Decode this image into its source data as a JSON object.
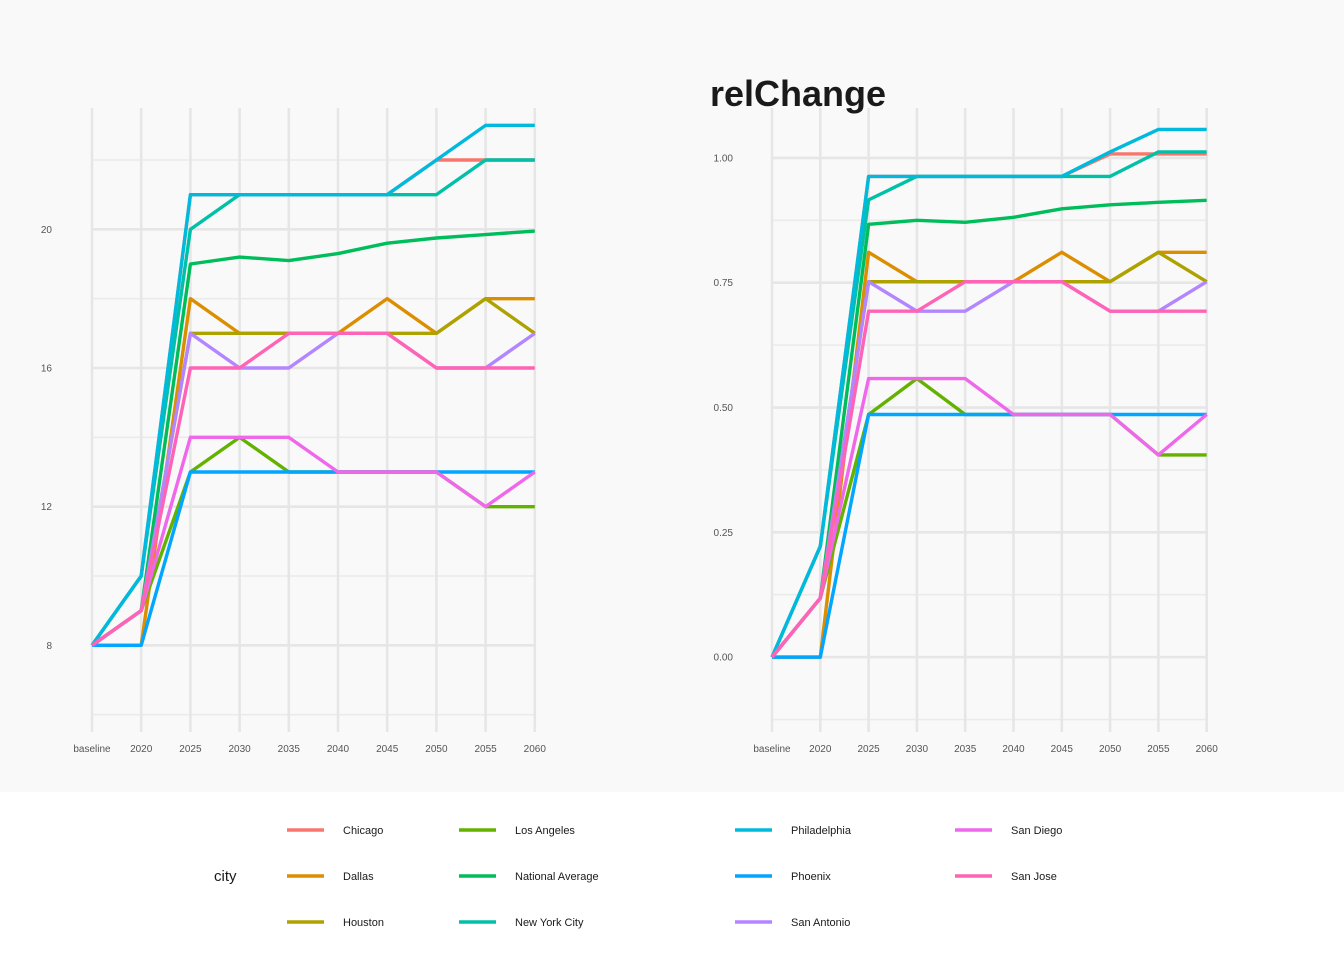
{
  "chart_data": [
    {
      "type": "line",
      "title": "",
      "xlabel": "",
      "ylabel": "",
      "categories": [
        "baseline",
        "2020",
        "2025",
        "2030",
        "2035",
        "2040",
        "2045",
        "2050",
        "2055",
        "2060"
      ],
      "ylim": [
        5.5,
        23.5
      ],
      "yticks": [
        8,
        12,
        16,
        20
      ],
      "grid": true,
      "series": [
        {
          "name": "Chicago",
          "color": "#F8766D",
          "values": [
            8,
            10,
            21,
            21,
            21,
            21,
            21,
            22,
            22,
            22
          ]
        },
        {
          "name": "Dallas",
          "color": "#DB8E00",
          "values": [
            8,
            8,
            18,
            17,
            17,
            17,
            18,
            17,
            18,
            18
          ]
        },
        {
          "name": "Houston",
          "color": "#AEA200",
          "values": [
            8,
            9,
            17,
            17,
            17,
            17,
            17,
            17,
            18,
            17
          ]
        },
        {
          "name": "Los Angeles",
          "color": "#64B200",
          "values": [
            8,
            9,
            13,
            14,
            13,
            13,
            13,
            13,
            12,
            12
          ]
        },
        {
          "name": "National Average",
          "color": "#00BD5C",
          "values": [
            8,
            9,
            19.0,
            19.2,
            19.1,
            19.3,
            19.6,
            19.75,
            19.85,
            19.95
          ]
        },
        {
          "name": "New York City",
          "color": "#00C1A7",
          "values": [
            8,
            10,
            20,
            21,
            21,
            21,
            21,
            21,
            22,
            22
          ]
        },
        {
          "name": "Philadelphia",
          "color": "#00BADE",
          "values": [
            8,
            10,
            21,
            21,
            21,
            21,
            21,
            22,
            23,
            23
          ]
        },
        {
          "name": "Phoenix",
          "color": "#00A6FF",
          "values": [
            8,
            8,
            13,
            13,
            13,
            13,
            13,
            13,
            13,
            13
          ]
        },
        {
          "name": "San Antonio",
          "color": "#B385FF",
          "values": [
            8,
            9,
            17,
            16,
            16,
            17,
            17,
            16,
            16,
            17
          ]
        },
        {
          "name": "San Diego",
          "color": "#EF67EB",
          "values": [
            8,
            9,
            14,
            14,
            14,
            13,
            13,
            13,
            12,
            13
          ]
        },
        {
          "name": "San Jose",
          "color": "#FF63B6",
          "values": [
            8,
            9,
            16,
            16,
            17,
            17,
            17,
            16,
            16,
            16
          ]
        }
      ]
    },
    {
      "type": "line",
      "title": "relChange",
      "xlabel": "",
      "ylabel": "",
      "categories": [
        "baseline",
        "2020",
        "2025",
        "2030",
        "2035",
        "2040",
        "2045",
        "2050",
        "2055",
        "2060"
      ],
      "ylim": [
        -0.15,
        1.1
      ],
      "yticks": [
        0.0,
        0.25,
        0.5,
        0.75,
        1.0
      ],
      "yticklabels": [
        "0.00",
        "0.25",
        "0.50",
        "0.75",
        "1.00"
      ],
      "grid": true,
      "series": [
        {
          "name": "Chicago",
          "color": "#F8766D",
          "values": [
            0,
            0.222,
            0.963,
            0.963,
            0.963,
            0.963,
            0.963,
            1.008,
            1.008,
            1.008
          ]
        },
        {
          "name": "Dallas",
          "color": "#DB8E00",
          "values": [
            0,
            0,
            0.811,
            0.752,
            0.752,
            0.752,
            0.811,
            0.752,
            0.811,
            0.811
          ]
        },
        {
          "name": "Houston",
          "color": "#AEA200",
          "values": [
            0,
            0.118,
            0.752,
            0.752,
            0.752,
            0.752,
            0.752,
            0.752,
            0.811,
            0.752
          ]
        },
        {
          "name": "Los Angeles",
          "color": "#64B200",
          "values": [
            0,
            0.118,
            0.486,
            0.558,
            0.486,
            0.486,
            0.486,
            0.486,
            0.405,
            0.405
          ]
        },
        {
          "name": "National Average",
          "color": "#00BD5C",
          "values": [
            0,
            0.118,
            0.867,
            0.875,
            0.871,
            0.881,
            0.898,
            0.906,
            0.911,
            0.915
          ]
        },
        {
          "name": "New York City",
          "color": "#00C1A7",
          "values": [
            0,
            0.222,
            0.916,
            0.963,
            0.963,
            0.963,
            0.963,
            0.963,
            1.012,
            1.012
          ]
        },
        {
          "name": "Philadelphia",
          "color": "#00BADE",
          "values": [
            0,
            0.222,
            0.963,
            0.963,
            0.963,
            0.963,
            0.963,
            1.012,
            1.057,
            1.057
          ]
        },
        {
          "name": "Phoenix",
          "color": "#00A6FF",
          "values": [
            0,
            0,
            0.486,
            0.486,
            0.486,
            0.486,
            0.486,
            0.486,
            0.486,
            0.486
          ]
        },
        {
          "name": "San Antonio",
          "color": "#B385FF",
          "values": [
            0,
            0.118,
            0.752,
            0.693,
            0.693,
            0.752,
            0.752,
            0.693,
            0.693,
            0.752
          ]
        },
        {
          "name": "San Diego",
          "color": "#EF67EB",
          "values": [
            0,
            0.118,
            0.558,
            0.558,
            0.558,
            0.486,
            0.486,
            0.486,
            0.405,
            0.486
          ]
        },
        {
          "name": "San Jose",
          "color": "#FF63B6",
          "values": [
            0,
            0.118,
            0.693,
            0.693,
            0.752,
            0.752,
            0.752,
            0.693,
            0.693,
            0.693
          ]
        }
      ]
    }
  ],
  "legend": {
    "title": "city",
    "position": "bottom"
  }
}
